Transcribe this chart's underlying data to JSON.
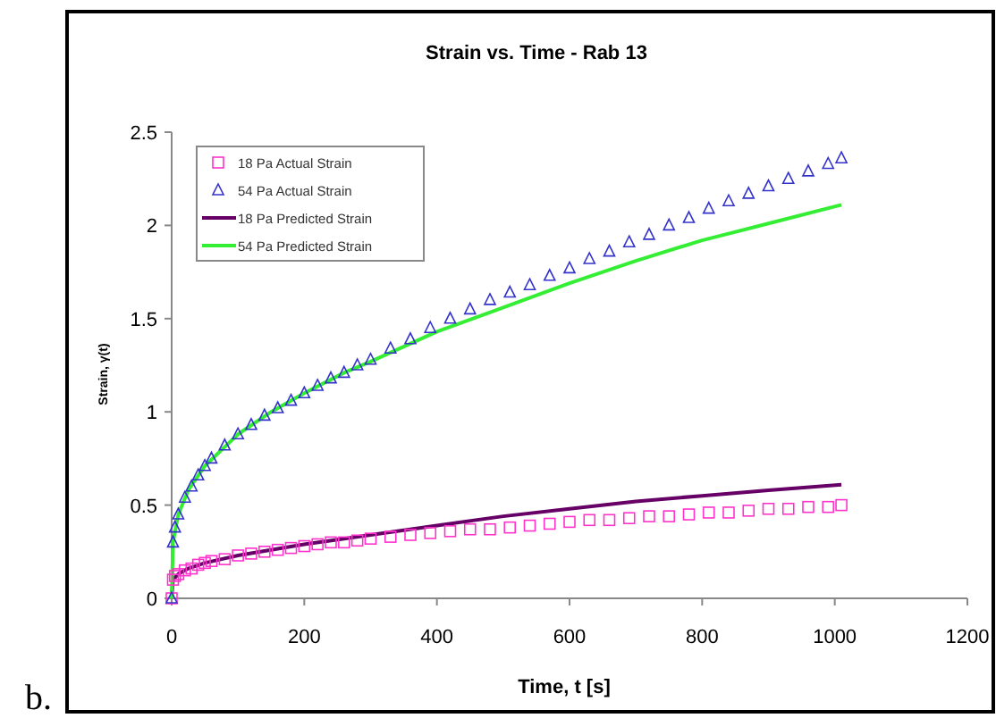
{
  "chart_data": {
    "type": "scatter",
    "title": "Strain vs. Time - Rab 13",
    "xlabel": "Time, t [s]",
    "ylabel": "Strain, γ(t)",
    "xlim": [
      0,
      1200
    ],
    "xticks": [
      0,
      200,
      400,
      600,
      800,
      1000,
      1200
    ],
    "ylim": [
      0,
      2.5
    ],
    "yticks": [
      0,
      0.5,
      1,
      1.5,
      2,
      2.5
    ],
    "legend": "top left",
    "annotations": [
      "b."
    ],
    "series": [
      {
        "name": "18 Pa Actual Strain",
        "marker": "square",
        "color": "#ff33cc",
        "x": [
          0,
          2,
          5,
          10,
          20,
          30,
          40,
          50,
          60,
          80,
          100,
          120,
          140,
          160,
          180,
          200,
          220,
          240,
          260,
          280,
          300,
          330,
          360,
          390,
          420,
          450,
          480,
          510,
          540,
          570,
          600,
          630,
          660,
          690,
          720,
          750,
          780,
          810,
          840,
          870,
          900,
          930,
          960,
          990,
          1010
        ],
        "values": [
          0,
          0.1,
          0.12,
          0.13,
          0.15,
          0.16,
          0.18,
          0.19,
          0.2,
          0.21,
          0.23,
          0.24,
          0.25,
          0.26,
          0.27,
          0.28,
          0.29,
          0.3,
          0.3,
          0.31,
          0.32,
          0.33,
          0.34,
          0.35,
          0.36,
          0.37,
          0.37,
          0.38,
          0.39,
          0.4,
          0.41,
          0.42,
          0.42,
          0.43,
          0.44,
          0.44,
          0.45,
          0.46,
          0.46,
          0.47,
          0.48,
          0.48,
          0.49,
          0.49,
          0.5
        ]
      },
      {
        "name": "54 Pa Actual Strain",
        "marker": "triangle",
        "color": "#3333cc",
        "x": [
          0,
          2,
          5,
          10,
          20,
          30,
          40,
          50,
          60,
          80,
          100,
          120,
          140,
          160,
          180,
          200,
          220,
          240,
          260,
          280,
          300,
          330,
          360,
          390,
          420,
          450,
          480,
          510,
          540,
          570,
          600,
          630,
          660,
          690,
          720,
          750,
          780,
          810,
          840,
          870,
          900,
          930,
          960,
          990,
          1010
        ],
        "values": [
          0,
          0.3,
          0.38,
          0.45,
          0.54,
          0.6,
          0.66,
          0.71,
          0.75,
          0.82,
          0.88,
          0.93,
          0.98,
          1.02,
          1.06,
          1.1,
          1.14,
          1.18,
          1.21,
          1.25,
          1.28,
          1.34,
          1.39,
          1.45,
          1.5,
          1.55,
          1.6,
          1.64,
          1.68,
          1.73,
          1.77,
          1.82,
          1.86,
          1.91,
          1.95,
          2.0,
          2.04,
          2.09,
          2.13,
          2.17,
          2.21,
          2.25,
          2.29,
          2.33,
          2.36
        ]
      },
      {
        "name": "18 Pa Predicted Strain",
        "type": "line",
        "marker": "none",
        "color": "#660066",
        "x": [
          0,
          2,
          10,
          25,
          50,
          100,
          150,
          200,
          260,
          300,
          400,
          500,
          600,
          700,
          800,
          900,
          1010
        ],
        "values": [
          0,
          0.1,
          0.13,
          0.16,
          0.19,
          0.23,
          0.26,
          0.29,
          0.32,
          0.34,
          0.39,
          0.44,
          0.48,
          0.52,
          0.55,
          0.58,
          0.61
        ]
      },
      {
        "name": "54 Pa Predicted Strain",
        "type": "line",
        "marker": "none",
        "color": "#33ee33",
        "x": [
          0,
          2,
          10,
          25,
          50,
          100,
          150,
          200,
          260,
          300,
          400,
          500,
          600,
          700,
          800,
          900,
          1010
        ],
        "values": [
          0,
          0.3,
          0.45,
          0.58,
          0.71,
          0.88,
          1.0,
          1.1,
          1.21,
          1.27,
          1.43,
          1.56,
          1.69,
          1.81,
          1.92,
          2.01,
          2.11
        ]
      }
    ]
  }
}
